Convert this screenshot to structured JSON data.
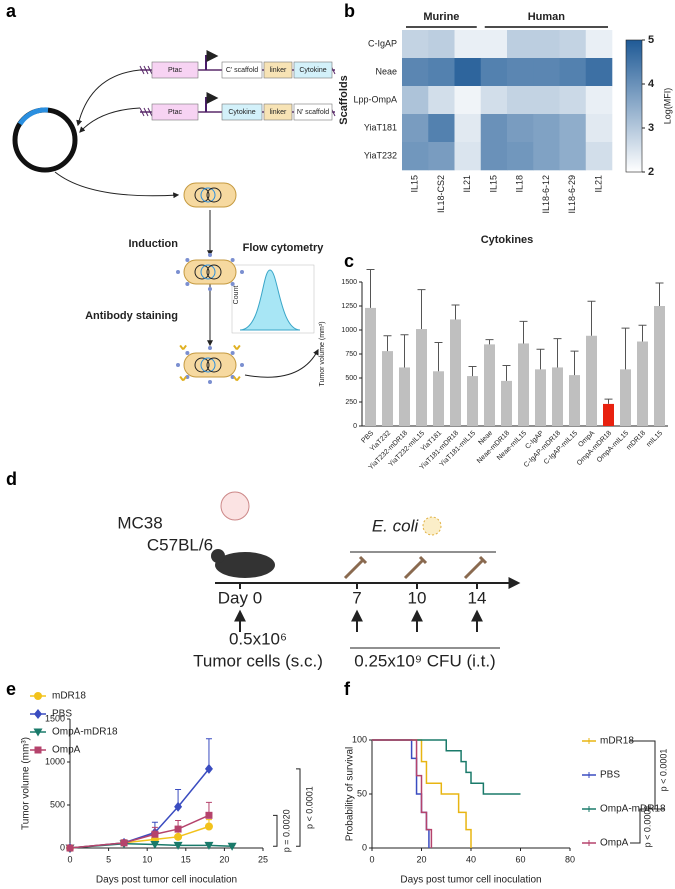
{
  "panels": [
    "a",
    "b",
    "c",
    "d",
    "e",
    "f"
  ],
  "diagram": {
    "construct1": [
      "Ptac",
      "C' scaffold",
      "linker",
      "Cytokine"
    ],
    "construct2": [
      "Ptac",
      "Cytokine",
      "linker",
      "N' scaffold"
    ],
    "induction": "Induction",
    "staining": "Antibody staining",
    "flow": "Flow cytometry",
    "count": "Count",
    "cell_line": "MC38",
    "mouse": "C57BL/6",
    "bacteria": "E. coli",
    "days": [
      "Day 0",
      "7",
      "10",
      "14"
    ],
    "dose1": "0.5x10⁶",
    "dose1_label": "Tumor cells (s.c.)",
    "dose2": "0.25x10⁹ CFU (i.t.)"
  },
  "chart_data": [
    {
      "type": "heatmap",
      "rows": [
        "C-IgAP",
        "Neae",
        "Lpp-OmpA",
        "YiaT181",
        "YiaT232"
      ],
      "columns": [
        "IL15",
        "IL18-CS2",
        "IL21",
        "IL15",
        "IL18",
        "IL18-6-12",
        "IL18-6-29",
        "IL21"
      ],
      "column_groups": [
        "Murine",
        "Human"
      ],
      "values": [
        [
          2.8,
          2.9,
          2.3,
          2.3,
          2.9,
          2.9,
          2.8,
          2.3
        ],
        [
          4.2,
          4.3,
          4.8,
          4.3,
          4.2,
          4.2,
          4.3,
          4.6
        ],
        [
          3.1,
          2.6,
          2.2,
          2.6,
          2.8,
          2.8,
          2.7,
          2.3
        ],
        [
          3.8,
          4.3,
          2.4,
          4.0,
          3.8,
          3.7,
          3.5,
          2.4
        ],
        [
          3.9,
          3.8,
          2.5,
          4.0,
          3.9,
          3.7,
          3.5,
          2.6
        ]
      ],
      "zlim": [
        2,
        5
      ],
      "zticks": [
        2,
        3,
        4,
        5
      ],
      "color_min": "#ffffff",
      "color_max": "#1f5a96",
      "colorbar_label": "Log(MFI)",
      "ylabel": "Scaffolds",
      "xlabel": "Cytokines"
    },
    {
      "type": "bar",
      "categories": [
        "PBS",
        "YiaT232",
        "YiaT232-mDR18",
        "YiaT232-mIL15",
        "YiaT181",
        "YiaT181-mDR18",
        "YiaT181-mIL15",
        "Neae",
        "Neae-mDR18",
        "Neae-mIL15",
        "C-IgAP",
        "C-IgAP-mDR18",
        "C-IgAP-mIL15",
        "OmpA",
        "OmpA-mDR18",
        "OmpA-mIL15",
        "mDR18",
        "mIL15"
      ],
      "values": [
        1230,
        780,
        610,
        1010,
        570,
        1110,
        520,
        850,
        470,
        860,
        590,
        610,
        530,
        940,
        230,
        590,
        880,
        1250
      ],
      "errors": [
        400,
        160,
        340,
        410,
        300,
        150,
        100,
        50,
        160,
        230,
        210,
        300,
        250,
        360,
        50,
        430,
        170,
        240
      ],
      "colors": [
        "#bfbfbf",
        "#bfbfbf",
        "#bfbfbf",
        "#bfbfbf",
        "#bfbfbf",
        "#bfbfbf",
        "#bfbfbf",
        "#bfbfbf",
        "#bfbfbf",
        "#bfbfbf",
        "#bfbfbf",
        "#bfbfbf",
        "#bfbfbf",
        "#bfbfbf",
        "#e8210f",
        "#bfbfbf",
        "#bfbfbf",
        "#bfbfbf"
      ],
      "ylim": [
        0,
        1500
      ],
      "yticks": [
        0,
        250,
        500,
        750,
        1000,
        1250,
        1500
      ],
      "ylabel": "Tumor volume (mm³)"
    },
    {
      "type": "line",
      "xlim": [
        0,
        25
      ],
      "xticks": [
        0,
        5,
        10,
        15,
        20,
        25
      ],
      "ylim": [
        0,
        1500
      ],
      "yticks": [
        0,
        500,
        1000,
        1500
      ],
      "xlabel": "Days post tumor cell inoculation",
      "ylabel": "Tumor volume (mm³)",
      "annotations": [
        "p = 0.0020",
        "p < 0.0001"
      ],
      "series": [
        {
          "name": "mDR18",
          "color": "#f2c21b",
          "marker": "circle",
          "x": [
            0,
            7,
            11,
            14,
            18
          ],
          "values": [
            0,
            60,
            100,
            130,
            250
          ],
          "errors": [
            0,
            20,
            50,
            60,
            80
          ]
        },
        {
          "name": "PBS",
          "color": "#3a4cc0",
          "marker": "diamond",
          "x": [
            0,
            7,
            11,
            14,
            18
          ],
          "values": [
            0,
            60,
            180,
            480,
            920
          ],
          "errors": [
            0,
            30,
            120,
            200,
            350
          ]
        },
        {
          "name": "OmpA-mDR18",
          "color": "#1a7a6a",
          "marker": "triangle",
          "x": [
            0,
            7,
            11,
            14,
            18,
            21
          ],
          "values": [
            0,
            50,
            40,
            30,
            30,
            20
          ],
          "errors": [
            0,
            15,
            15,
            10,
            10,
            10
          ]
        },
        {
          "name": "OmpA",
          "color": "#b5436c",
          "marker": "square",
          "x": [
            0,
            7,
            11,
            14,
            18
          ],
          "values": [
            0,
            60,
            160,
            220,
            380
          ],
          "errors": [
            0,
            30,
            80,
            100,
            150
          ]
        }
      ]
    },
    {
      "type": "step",
      "xlim": [
        0,
        80
      ],
      "xticks": [
        0,
        20,
        40,
        60,
        80
      ],
      "ylim": [
        0,
        100
      ],
      "yticks": [
        0,
        50,
        100
      ],
      "xlabel": "Days post tumor cell inoculation",
      "ylabel": "Probability of survival",
      "annotations": [
        "p < 0.0001",
        "p < 0.0001"
      ],
      "series": [
        {
          "name": "mDR18",
          "color": "#e8b512",
          "x": [
            0,
            20,
            22,
            28,
            35,
            38,
            40
          ],
          "values": [
            100,
            80,
            60,
            50,
            33,
            17,
            0
          ]
        },
        {
          "name": "PBS",
          "color": "#3a4cc0",
          "x": [
            0,
            16,
            18,
            20,
            22,
            23
          ],
          "values": [
            100,
            83,
            50,
            33,
            17,
            0
          ]
        },
        {
          "name": "OmpA-mDR18",
          "color": "#1a7a6a",
          "x": [
            0,
            30,
            36,
            38,
            40,
            45,
            60
          ],
          "values": [
            100,
            90,
            80,
            70,
            60,
            50,
            50
          ]
        },
        {
          "name": "OmpA",
          "color": "#b5436c",
          "x": [
            0,
            18,
            20,
            22,
            24
          ],
          "values": [
            100,
            67,
            33,
            17,
            0
          ]
        }
      ]
    }
  ]
}
